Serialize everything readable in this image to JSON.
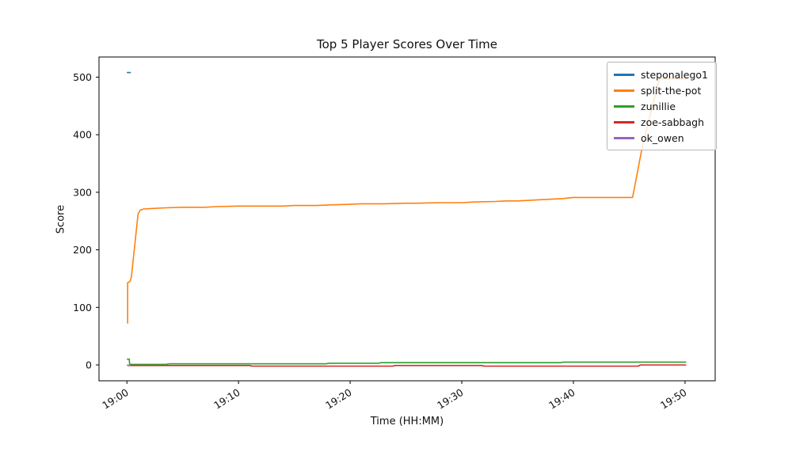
{
  "chart_data": {
    "type": "line",
    "title": "Top 5 Player Scores Over Time",
    "xlabel": "Time (HH:MM)",
    "ylabel": "Score",
    "legend_position": "upper right",
    "grid": false,
    "xlim_minutes": [
      -2.5,
      52.7
    ],
    "ylim": [
      -27.5,
      535
    ],
    "y_ticks": [
      0,
      100,
      200,
      300,
      400,
      500
    ],
    "x_ticks": [
      {
        "m": 0,
        "label": "19:00"
      },
      {
        "m": 10,
        "label": "19:10"
      },
      {
        "m": 20,
        "label": "19:20"
      },
      {
        "m": 30,
        "label": "19:30"
      },
      {
        "m": 40,
        "label": "19:40"
      },
      {
        "m": 50,
        "label": "19:50"
      }
    ],
    "series": [
      {
        "name": "steponalego1",
        "color": "#1f77b4",
        "points": [
          [
            0,
            508
          ],
          [
            0.35,
            508
          ]
        ]
      },
      {
        "name": "split-the-pot",
        "color": "#ff7f0e",
        "points": [
          [
            0.07,
            72
          ],
          [
            0.07,
            143
          ],
          [
            0.2,
            144
          ],
          [
            0.3,
            146
          ],
          [
            0.4,
            153
          ],
          [
            1.0,
            262
          ],
          [
            1.2,
            269
          ],
          [
            1.5,
            271
          ],
          [
            2.5,
            272
          ],
          [
            3.5,
            273
          ],
          [
            5,
            274
          ],
          [
            7,
            274
          ],
          [
            8,
            275
          ],
          [
            10,
            276
          ],
          [
            14,
            276
          ],
          [
            15,
            277
          ],
          [
            17,
            277
          ],
          [
            18,
            278
          ],
          [
            20,
            279
          ],
          [
            21,
            280
          ],
          [
            23,
            280
          ],
          [
            25,
            281
          ],
          [
            26,
            281
          ],
          [
            28,
            282
          ],
          [
            30,
            282
          ],
          [
            31,
            283
          ],
          [
            33,
            284
          ],
          [
            34,
            285
          ],
          [
            35,
            285
          ],
          [
            36,
            286
          ],
          [
            37,
            287
          ],
          [
            38,
            288
          ],
          [
            39,
            289
          ],
          [
            40,
            291
          ],
          [
            45.3,
            291
          ],
          [
            46.2,
            382
          ],
          [
            47.7,
            497
          ],
          [
            50.1,
            497
          ]
        ]
      },
      {
        "name": "zunillie",
        "color": "#2ca02c",
        "points": [
          [
            0,
            10
          ],
          [
            0.2,
            10
          ],
          [
            0.25,
            1
          ],
          [
            3.5,
            1
          ],
          [
            3.8,
            2
          ],
          [
            17.8,
            2
          ],
          [
            18.1,
            3
          ],
          [
            22.5,
            3
          ],
          [
            22.8,
            4
          ],
          [
            38.8,
            4
          ],
          [
            39.1,
            5
          ],
          [
            50.1,
            5
          ]
        ]
      },
      {
        "name": "zoe-sabbagh",
        "color": "#d62728",
        "points": [
          [
            0.07,
            -1
          ],
          [
            11,
            -1
          ],
          [
            11.2,
            -2
          ],
          [
            23.8,
            -2
          ],
          [
            24,
            -1
          ],
          [
            31.8,
            -1
          ],
          [
            32,
            -2
          ],
          [
            45.8,
            -2
          ],
          [
            46,
            0
          ],
          [
            50.1,
            0
          ]
        ]
      },
      {
        "name": "ok_owen",
        "color": "#9467bd",
        "points": [
          [
            0,
            -0.5
          ],
          [
            0.35,
            -0.5
          ]
        ]
      }
    ]
  }
}
